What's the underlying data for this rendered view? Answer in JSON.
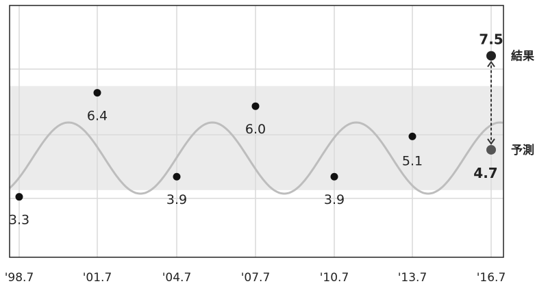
{
  "chart_data": {
    "type": "line",
    "x": [
      "'98.7",
      "'01.7",
      "'04.7",
      "'07.7",
      "'10.7",
      "'13.7",
      "'16.7"
    ],
    "series": [
      {
        "values": [
          3.3,
          6.4,
          3.9,
          6.0,
          3.9,
          5.1,
          4.7
        ]
      }
    ],
    "result": {
      "x": "'16.7",
      "value": 7.5,
      "label": "結果"
    },
    "forecast_label": "予測",
    "value_labels": [
      "3.3",
      "6.4",
      "3.9",
      "6.0",
      "3.9",
      "5.1",
      "4.7"
    ],
    "result_value_label": "7.5",
    "ylim": [
      1.5,
      9.0
    ],
    "shaded_band": [
      3.5,
      6.6
    ],
    "grid": true,
    "colors": {
      "curve": "#bdbdbd",
      "band": "#ebebeb",
      "grid": "#d9d9d9",
      "point": "#111111",
      "forecast_point": "#555555",
      "result_point": "#222222"
    }
  }
}
